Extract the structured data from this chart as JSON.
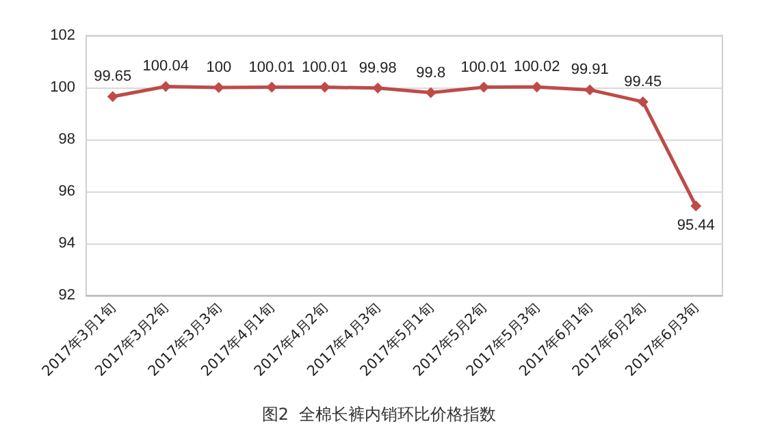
{
  "chart_data": {
    "type": "line",
    "title": "图2  全棉长裤内销环比价格指数",
    "categories": [
      "2017年3月1旬",
      "2017年3月2旬",
      "2017年3月3旬",
      "2017年4月1旬",
      "2017年4月2旬",
      "2017年4月3旬",
      "2017年5月1旬",
      "2017年5月2旬",
      "2017年5月3旬",
      "2017年6月1旬",
      "2017年6月2旬",
      "2017年6月3旬"
    ],
    "series": [
      {
        "color": "#be4b48",
        "values": [
          99.65,
          100.04,
          100,
          100.01,
          100.01,
          99.98,
          99.8,
          100.01,
          100.02,
          99.91,
          99.45,
          95.44
        ]
      }
    ],
    "ylim": [
      92,
      102
    ],
    "yticks": [
      92,
      94,
      96,
      98,
      100,
      102
    ],
    "grid": "y",
    "marker": "diamond",
    "line_style": "solid",
    "data_labels": true
  }
}
